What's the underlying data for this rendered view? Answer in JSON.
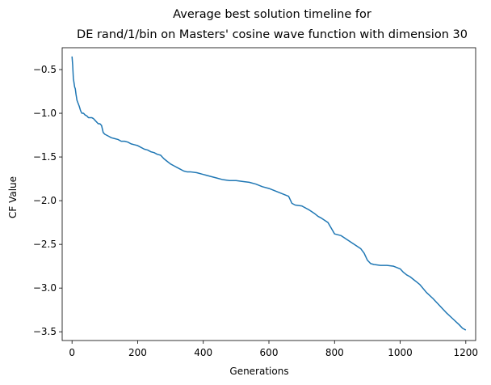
{
  "chart_data": {
    "type": "line",
    "title": "Average best solution timeline for",
    "subtitle": "DE rand/1/bin on Masters' cosine wave function with dimension 30",
    "xlabel": "Generations",
    "ylabel": "CF Value",
    "xlim": [
      -30,
      1230
    ],
    "ylim": [
      -3.6,
      -0.25
    ],
    "xticks": [
      0,
      200,
      400,
      600,
      800,
      1000,
      1200
    ],
    "xtick_labels": [
      "0",
      "200",
      "400",
      "600",
      "800",
      "1000",
      "1200"
    ],
    "yticks": [
      -0.5,
      -1.0,
      -1.5,
      -2.0,
      -2.5,
      -3.0,
      -3.5
    ],
    "ytick_labels": [
      "−0.5",
      "−1.0",
      "−1.5",
      "−2.0",
      "−2.5",
      "−3.0",
      "−3.5"
    ],
    "grid": false,
    "line_color": "#1f77b4",
    "series": [
      {
        "values_x": [
          0,
          2,
          4,
          6,
          8,
          10,
          12,
          15,
          18,
          22,
          26,
          30,
          35,
          40,
          45,
          50,
          55,
          60,
          65,
          70,
          75,
          80,
          85,
          90,
          95,
          100,
          110,
          120,
          130,
          140,
          150,
          160,
          170,
          180,
          190,
          200,
          210,
          220,
          230,
          240,
          250,
          260,
          270,
          280,
          290,
          300,
          310,
          320,
          330,
          340,
          350,
          360,
          380,
          400,
          420,
          440,
          460,
          480,
          500,
          520,
          540,
          560,
          580,
          600,
          620,
          640,
          660,
          670,
          680,
          700,
          720,
          740,
          750,
          760,
          780,
          800,
          820,
          840,
          860,
          880,
          890,
          900,
          910,
          920,
          940,
          960,
          980,
          1000,
          1010,
          1020,
          1030,
          1040,
          1050,
          1060,
          1080,
          1100,
          1120,
          1140,
          1160,
          1180,
          1190,
          1200
        ],
        "values_y": [
          -0.35,
          -0.45,
          -0.6,
          -0.65,
          -0.7,
          -0.72,
          -0.78,
          -0.85,
          -0.88,
          -0.92,
          -0.97,
          -1.0,
          -1.0,
          -1.02,
          -1.03,
          -1.05,
          -1.05,
          -1.05,
          -1.06,
          -1.08,
          -1.1,
          -1.12,
          -1.12,
          -1.14,
          -1.22,
          -1.24,
          -1.26,
          -1.28,
          -1.29,
          -1.3,
          -1.32,
          -1.32,
          -1.33,
          -1.35,
          -1.36,
          -1.37,
          -1.39,
          -1.41,
          -1.42,
          -1.44,
          -1.45,
          -1.47,
          -1.48,
          -1.52,
          -1.55,
          -1.58,
          -1.6,
          -1.62,
          -1.64,
          -1.66,
          -1.67,
          -1.67,
          -1.68,
          -1.7,
          -1.72,
          -1.74,
          -1.76,
          -1.77,
          -1.77,
          -1.78,
          -1.79,
          -1.81,
          -1.84,
          -1.86,
          -1.89,
          -1.92,
          -1.95,
          -2.03,
          -2.05,
          -2.06,
          -2.1,
          -2.15,
          -2.18,
          -2.2,
          -2.25,
          -2.38,
          -2.4,
          -2.45,
          -2.5,
          -2.55,
          -2.6,
          -2.68,
          -2.72,
          -2.73,
          -2.74,
          -2.74,
          -2.75,
          -2.78,
          -2.82,
          -2.85,
          -2.87,
          -2.9,
          -2.93,
          -2.96,
          -3.05,
          -3.12,
          -3.2,
          -3.28,
          -3.35,
          -3.42,
          -3.46,
          -3.48
        ]
      }
    ]
  }
}
